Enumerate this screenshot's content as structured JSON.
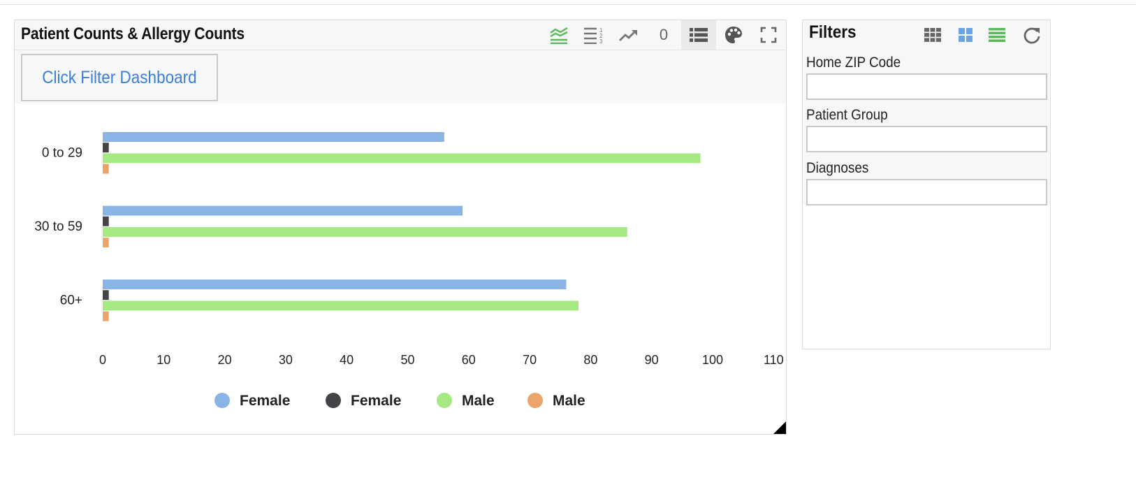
{
  "chart_panel": {
    "title": "Patient Counts & Allergy Counts",
    "toolbar": {
      "icons": [
        "stacked-chart-icon",
        "list-order-icon",
        "trend-line-icon",
        "count",
        "list-view-icon",
        "palette-icon",
        "fullscreen-icon"
      ],
      "count_value": "0"
    },
    "filter_button_label": "Click Filter Dashboard"
  },
  "filters_panel": {
    "title": "Filters",
    "toolbar_icons": [
      "grid-icon",
      "tiles-icon",
      "rows-icon",
      "refresh-icon"
    ],
    "fields": [
      {
        "label": "Home ZIP Code",
        "value": ""
      },
      {
        "label": "Patient Group",
        "value": ""
      },
      {
        "label": "Diagnoses",
        "value": ""
      }
    ]
  },
  "colors": {
    "accent_blue": "#3b7fd9",
    "accent_green": "#5cb85c",
    "series": [
      "#8ab3e6",
      "#434348",
      "#a6e882",
      "#eba46a"
    ]
  },
  "chart_data": {
    "type": "bar",
    "orientation": "horizontal",
    "categories": [
      "0 to 29",
      "30 to 59",
      "60+"
    ],
    "series": [
      {
        "name": "Female",
        "color": "#8ab3e6",
        "values": [
          56,
          59,
          76
        ]
      },
      {
        "name": "Female",
        "color": "#434348",
        "values": [
          1,
          1,
          1
        ]
      },
      {
        "name": "Male",
        "color": "#a6e882",
        "values": [
          98,
          86,
          78
        ]
      },
      {
        "name": "Male",
        "color": "#eba46a",
        "values": [
          1,
          1,
          1
        ]
      }
    ],
    "x_ticks": [
      0,
      10,
      20,
      30,
      40,
      50,
      60,
      70,
      80,
      90,
      100,
      110
    ],
    "xlim": [
      0,
      110
    ],
    "grid": false,
    "legend_position": "bottom-center"
  }
}
